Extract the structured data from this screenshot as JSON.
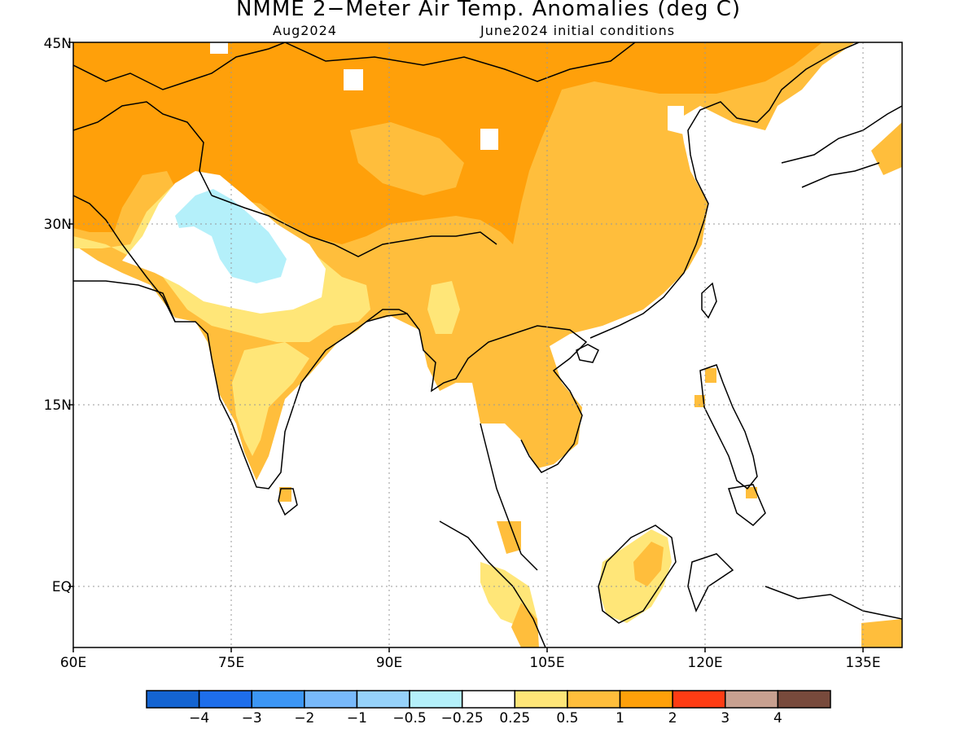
{
  "title": "NMME 2−Meter Air Temp. Anomalies (deg C)",
  "subtitle_left": "Aug2024",
  "subtitle_right": "June2024 initial conditions",
  "lat_labels": [
    "45N",
    "30N",
    "15N",
    "EQ"
  ],
  "lon_labels": [
    "60E",
    "75E",
    "90E",
    "105E",
    "120E",
    "135E"
  ],
  "map_extent": {
    "lon": [
      60,
      140
    ],
    "lat": [
      -5,
      45
    ]
  },
  "legend": {
    "colors": [
      "#1464d2",
      "#1e6eeb",
      "#3c96f5",
      "#78b9fa",
      "#96d2fa",
      "#b4f0fa",
      "#ffffff",
      "#ffe678",
      "#ffbe3c",
      "#ffa00a",
      "#ff3c14",
      "#c8a090",
      "#784a3c"
    ],
    "labels": [
      "−4",
      "−3",
      "−2",
      "−1",
      "−0.5",
      "−0.25",
      "0.25",
      "0.5",
      "1",
      "2",
      "3",
      "4"
    ]
  },
  "palette": {
    "ocean": "#ffffff",
    "cool_light": "#b4f0fa",
    "warm_light": "#ffe678",
    "warm_mid": "#ffbe3c",
    "warm_strong": "#ffa00a"
  }
}
